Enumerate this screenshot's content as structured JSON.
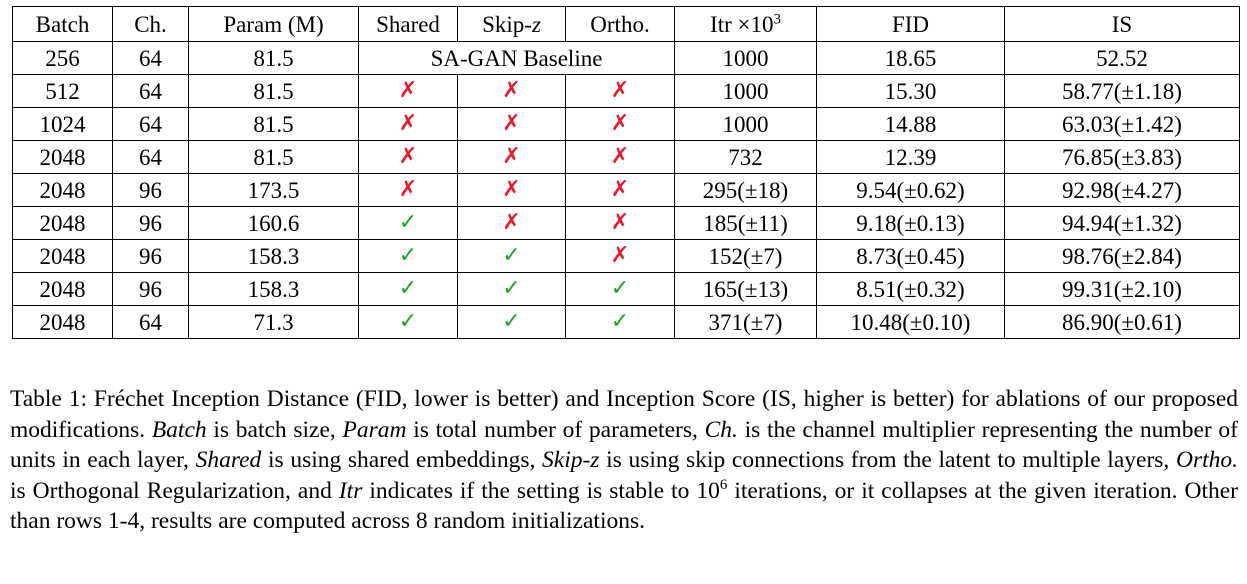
{
  "table": {
    "headers": {
      "batch": "Batch",
      "ch": "Ch.",
      "param": "Param (M)",
      "shared": "Shared",
      "skipz_pre": "Skip-",
      "skipz_var": "z",
      "ortho": "Ortho.",
      "itr_pre": "Itr ×10",
      "itr_exp": "3",
      "fid": "FID",
      "is": "IS"
    },
    "baseline_row": {
      "batch": "256",
      "ch": "64",
      "param": "81.5",
      "label": "SA-GAN Baseline",
      "itr": "1000",
      "fid": "18.65",
      "is": "52.52"
    },
    "rows": [
      {
        "batch": "512",
        "ch": "64",
        "param": "81.5",
        "shared": "✗",
        "skipz": "✗",
        "ortho": "✗",
        "itr": "1000",
        "fid": "15.30",
        "is": "58.77(±1.18)"
      },
      {
        "batch": "1024",
        "ch": "64",
        "param": "81.5",
        "shared": "✗",
        "skipz": "✗",
        "ortho": "✗",
        "itr": "1000",
        "fid": "14.88",
        "is": "63.03(±1.42)"
      },
      {
        "batch": "2048",
        "ch": "64",
        "param": "81.5",
        "shared": "✗",
        "skipz": "✗",
        "ortho": "✗",
        "itr": "732",
        "fid": "12.39",
        "is": "76.85(±3.83)"
      },
      {
        "batch": "2048",
        "ch": "96",
        "param": "173.5",
        "shared": "✗",
        "skipz": "✗",
        "ortho": "✗",
        "itr": "295(±18)",
        "fid": "9.54(±0.62)",
        "is": "92.98(±4.27)"
      },
      {
        "batch": "2048",
        "ch": "96",
        "param": "160.6",
        "shared": "✓",
        "skipz": "✗",
        "ortho": "✗",
        "itr": "185(±11)",
        "fid": "9.18(±0.13)",
        "is": "94.94(±1.32)"
      },
      {
        "batch": "2048",
        "ch": "96",
        "param": "158.3",
        "shared": "✓",
        "skipz": "✓",
        "ortho": "✗",
        "itr": "152(±7)",
        "fid": "8.73(±0.45)",
        "is": "98.76(±2.84)"
      },
      {
        "batch": "2048",
        "ch": "96",
        "param": "158.3",
        "shared": "✓",
        "skipz": "✓",
        "ortho": "✓",
        "itr": "165(±13)",
        "fid": "8.51(±0.32)",
        "is": "99.31(±2.10)"
      },
      {
        "batch": "2048",
        "ch": "64",
        "param": "71.3",
        "shared": "✓",
        "skipz": "✓",
        "ortho": "✓",
        "itr": "371(±7)",
        "fid": "10.48(±0.10)",
        "is": "86.90(±0.61)"
      }
    ]
  },
  "caption": {
    "p1": "Table 1: Fréchet Inception Distance (FID, lower is better) and Inception Score (IS, higher is better) for ablations of our proposed modifications. ",
    "i1": "Batch",
    "p2": " is batch size, ",
    "i2": "Param",
    "p3": " is total number of parameters, ",
    "i3": "Ch.",
    "p4": " is the channel multiplier representing the number of units in each layer, ",
    "i4": "Shared",
    "p5": " is using shared embeddings, ",
    "i5": "Skip-z",
    "p6": " is using skip connections from the latent to multiple layers, ",
    "i6": "Ortho.",
    "p7": " is Orthogonal Regularization, and ",
    "i7": "Itr",
    "p8": " indicates if the setting is stable to 10",
    "exp": "6",
    "p9": " iterations, or it collapses at the given iteration. Other than rows 1-4, results are computed across 8 random initializations."
  },
  "colors": {
    "cross": "#e8192c",
    "check": "#1fa51f"
  }
}
